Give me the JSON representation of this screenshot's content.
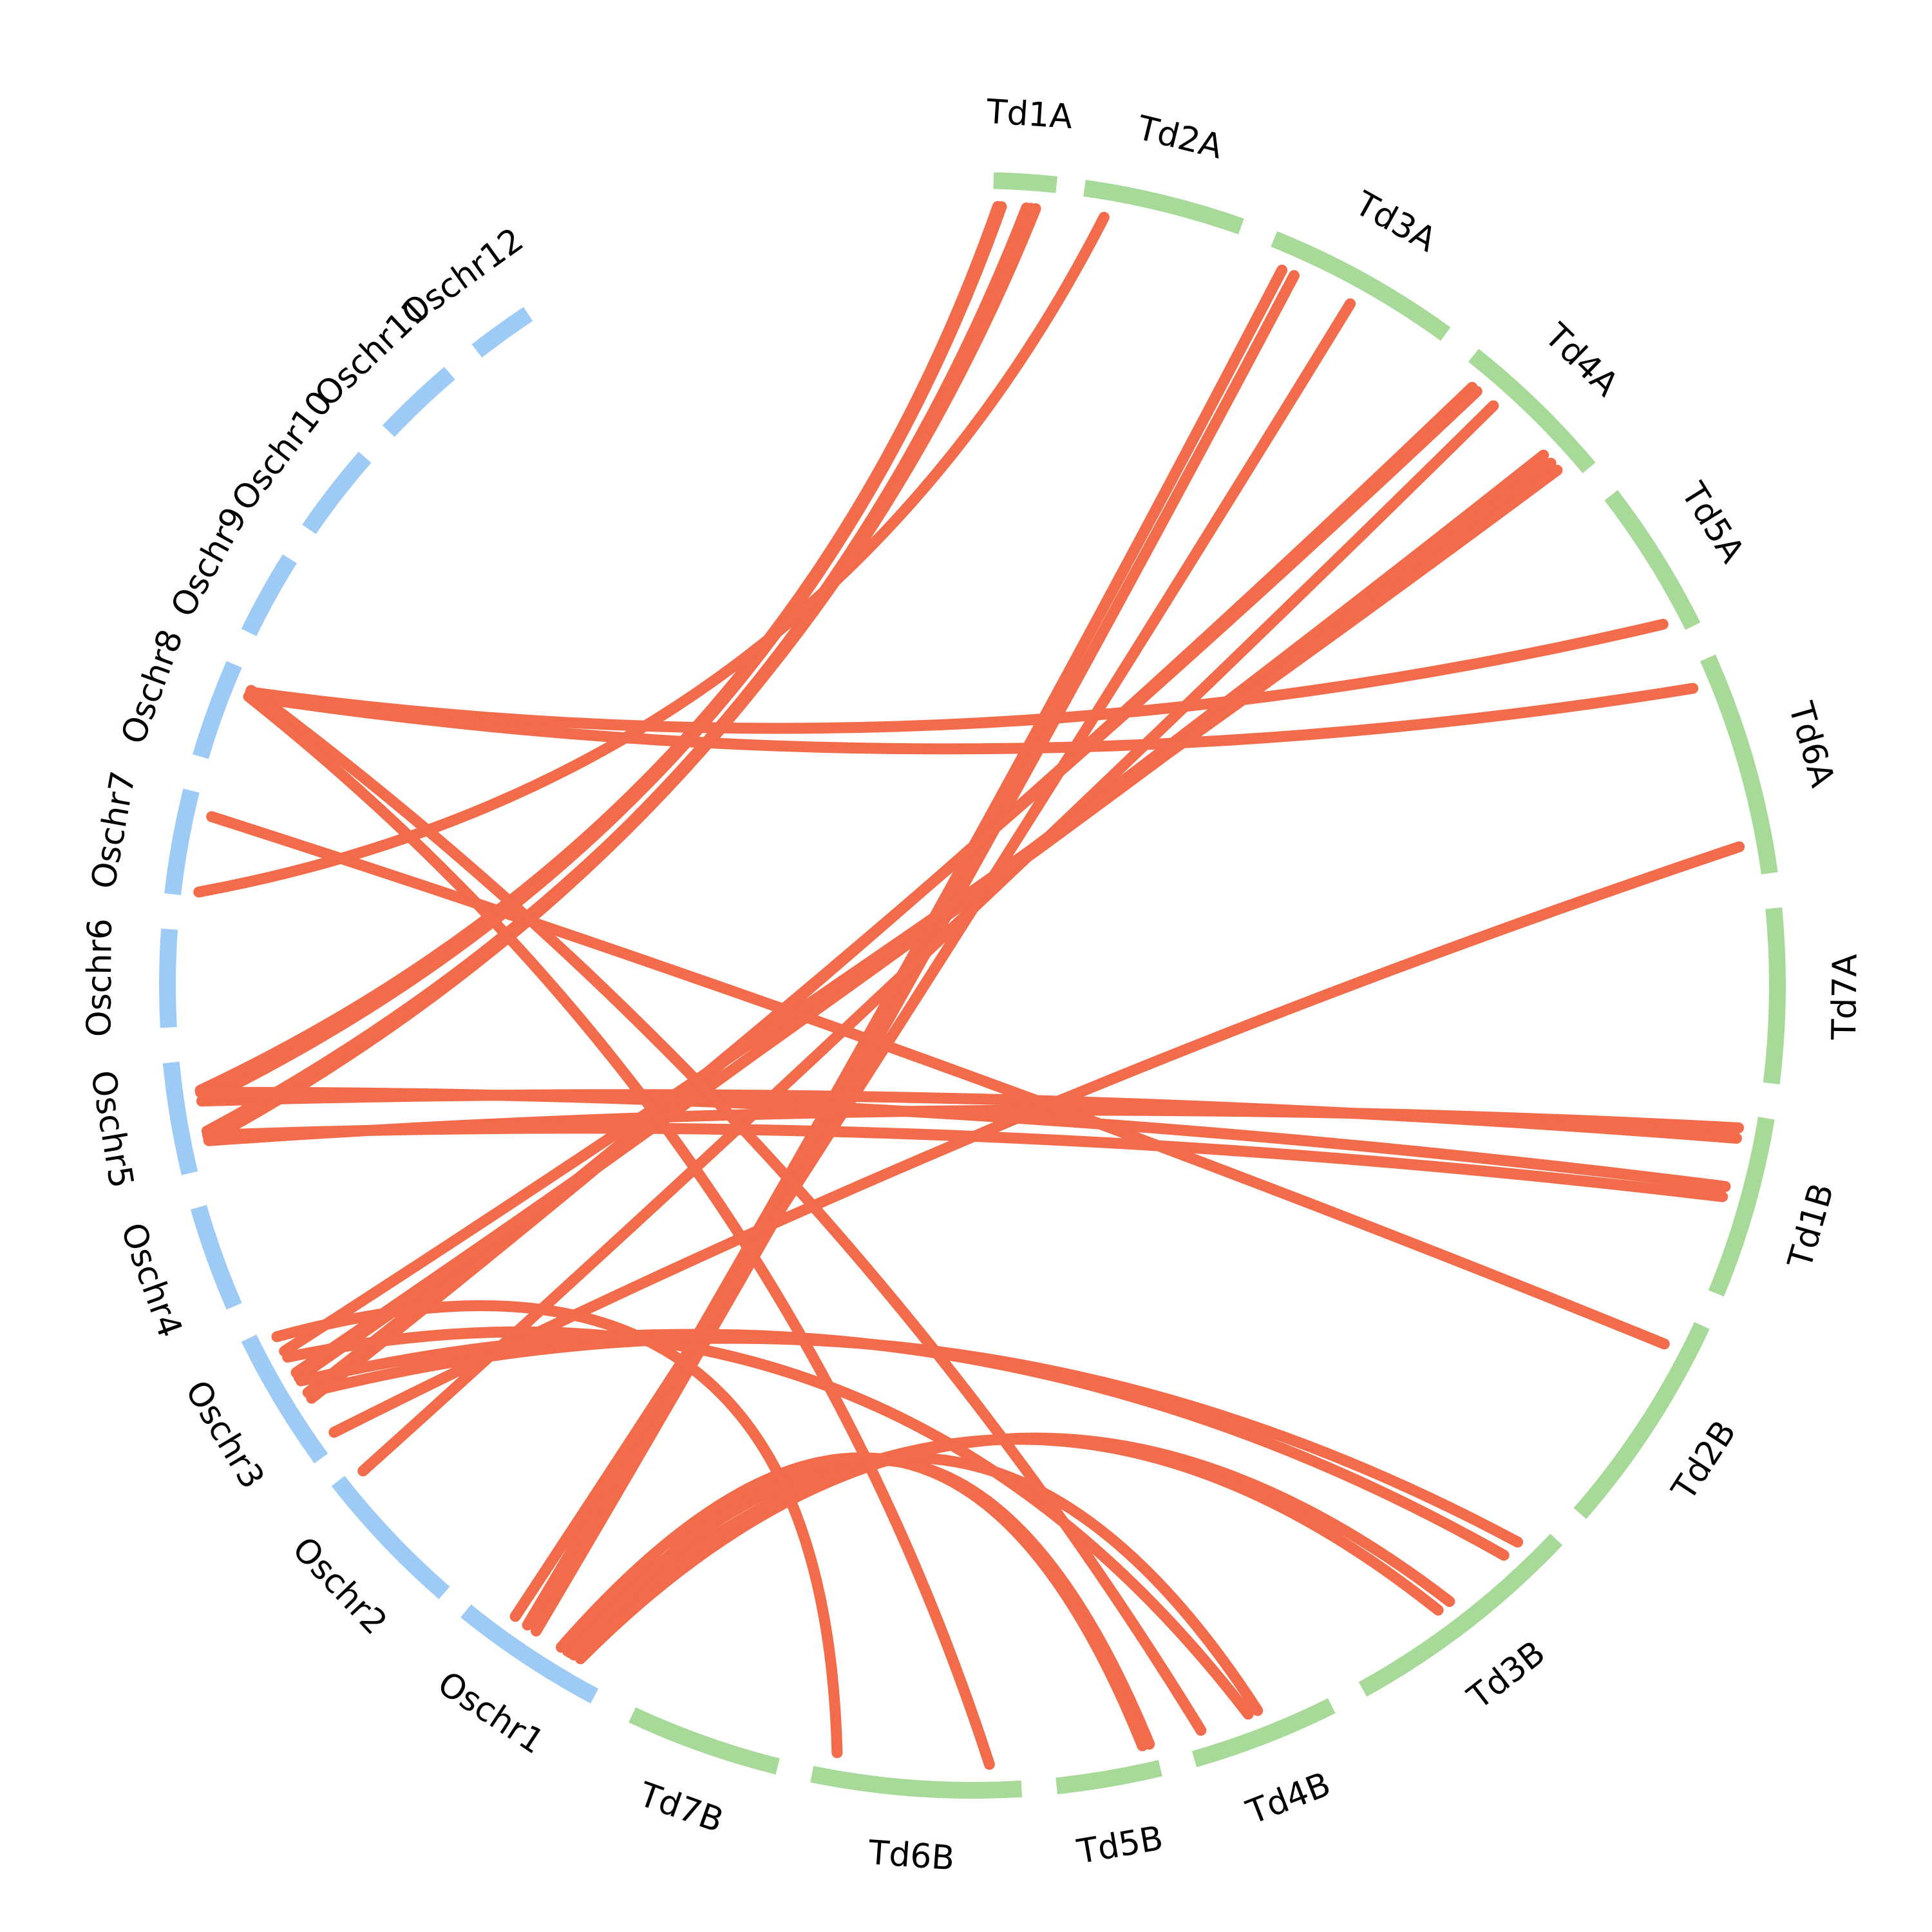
{
  "colors": {
    "rice": "#9ecbf6",
    "wheat": "#a7d999",
    "link": "#f26b4a",
    "label": "#000000"
  },
  "chromosomes": [
    {
      "id": "Td1A",
      "label": "Td1A",
      "group": "wheat"
    },
    {
      "id": "Td2A",
      "label": "Td2A",
      "group": "wheat"
    },
    {
      "id": "Td3A",
      "label": "Td3A",
      "group": "wheat"
    },
    {
      "id": "Td4A",
      "label": "Td4A",
      "group": "wheat"
    },
    {
      "id": "Td5A",
      "label": "Td5A",
      "group": "wheat"
    },
    {
      "id": "Td6A",
      "label": "Td6A",
      "group": "wheat"
    },
    {
      "id": "Td7A",
      "label": "Td7A",
      "group": "wheat"
    },
    {
      "id": "Td1B",
      "label": "Td1B",
      "group": "wheat"
    },
    {
      "id": "Td2B",
      "label": "Td2B",
      "group": "wheat"
    },
    {
      "id": "Td3B",
      "label": "Td3B",
      "group": "wheat"
    },
    {
      "id": "Td4B",
      "label": "Td4B",
      "group": "wheat"
    },
    {
      "id": "Td5B",
      "label": "Td5B",
      "group": "wheat"
    },
    {
      "id": "Td6B",
      "label": "Td6B",
      "group": "wheat"
    },
    {
      "id": "Td7B",
      "label": "Td7B",
      "group": "wheat"
    },
    {
      "id": "Oschr1",
      "label": "Oschr1",
      "group": "rice"
    },
    {
      "id": "Oschr2",
      "label": "Oschr2",
      "group": "rice"
    },
    {
      "id": "Oschr3",
      "label": "Oschr3",
      "group": "rice"
    },
    {
      "id": "Oschr4",
      "label": "Oschr4",
      "group": "rice"
    },
    {
      "id": "Oschr5",
      "label": "Oschr5",
      "group": "rice"
    },
    {
      "id": "Oschr6",
      "label": "Oschr6",
      "group": "rice"
    },
    {
      "id": "Oschr7",
      "label": "Oschr7",
      "group": "rice"
    },
    {
      "id": "Oschr8",
      "label": "Oschr8",
      "group": "rice"
    },
    {
      "id": "Oschr9",
      "label": "Oschr9",
      "group": "rice"
    },
    {
      "id": "Oschr10",
      "label": "Oschr10",
      "group": "rice"
    },
    {
      "id": "Oschr11",
      "label": "Oschr11",
      "group": "rice"
    },
    {
      "id": "Oschr12",
      "label": "Oschr12",
      "group": "rice"
    }
  ],
  "links": [
    {
      "source": "Td1A",
      "source_frac": 0.08,
      "target": "Oschr5",
      "target_frac": 0.72
    },
    {
      "source": "Td1A",
      "source_frac": 0.14,
      "target": "Oschr5",
      "target_frac": 0.62
    },
    {
      "source": "Td1A",
      "source_frac": 0.55,
      "target": "Oschr5",
      "target_frac": 0.3
    },
    {
      "source": "Td1A",
      "source_frac": 0.62,
      "target": "Oschr5",
      "target_frac": 0.26
    },
    {
      "source": "Td1A",
      "source_frac": 0.7,
      "target": "Oschr5",
      "target_frac": 0.34
    },
    {
      "source": "Td2A",
      "source_frac": 0.15,
      "target": "Oschr7",
      "target_frac": 0.05
    },
    {
      "source": "Td3A",
      "source_frac": 0.1,
      "target": "Oschr1",
      "target_frac": 0.62
    },
    {
      "source": "Td3A",
      "source_frac": 0.17,
      "target": "Oschr1",
      "target_frac": 0.55
    },
    {
      "source": "Td3A",
      "source_frac": 0.5,
      "target": "Oschr1",
      "target_frac": 0.72
    },
    {
      "source": "Td4A",
      "source_frac": 0.12,
      "target": "Oschr3",
      "target_frac": 0.4
    },
    {
      "source": "Td4A",
      "source_frac": 0.16,
      "target": "Oschr3",
      "target_frac": 0.45
    },
    {
      "source": "Td4A",
      "source_frac": 0.3,
      "target": "Oschr2",
      "target_frac": 0.95
    },
    {
      "source": "Td4A",
      "source_frac": 0.75,
      "target": "Oschr3",
      "target_frac": 0.58
    },
    {
      "source": "Td4A",
      "source_frac": 0.82,
      "target": "Oschr3",
      "target_frac": 0.62
    },
    {
      "source": "Td4A",
      "source_frac": 0.88,
      "target": "Oschr3",
      "target_frac": 0.8
    },
    {
      "source": "Td5A",
      "source_frac": 0.9,
      "target": "Oschr8",
      "target_frac": 0.8
    },
    {
      "source": "Td6A",
      "source_frac": 0.1,
      "target": "Oschr8",
      "target_frac": 0.75
    },
    {
      "source": "Td6A",
      "source_frac": 0.86,
      "target": "Oschr3",
      "target_frac": 0.1
    },
    {
      "source": "Td1B",
      "source_frac": 0.08,
      "target": "Oschr5",
      "target_frac": 0.25
    },
    {
      "source": "Td1B",
      "source_frac": 0.14,
      "target": "Oschr5",
      "target_frac": 0.62
    },
    {
      "source": "Td1B",
      "source_frac": 0.42,
      "target": "Oschr5",
      "target_frac": 0.7
    },
    {
      "source": "Td1B",
      "source_frac": 0.48,
      "target": "Oschr5",
      "target_frac": 0.3
    },
    {
      "source": "Td2B",
      "source_frac": 0.15,
      "target": "Oschr7",
      "target_frac": 0.8
    },
    {
      "source": "Td3B",
      "source_frac": 0.12,
      "target": "Oschr3",
      "target_frac": 0.45
    },
    {
      "source": "Td3B",
      "source_frac": 0.2,
      "target": "Oschr3",
      "target_frac": 0.55
    },
    {
      "source": "Td3B",
      "source_frac": 0.5,
      "target": "Oschr1",
      "target_frac": 0.2
    },
    {
      "source": "Td3B",
      "source_frac": 0.56,
      "target": "Oschr1",
      "target_frac": 0.28
    },
    {
      "source": "Td4B",
      "source_frac": 0.48,
      "target": "Oschr1",
      "target_frac": 0.3
    },
    {
      "source": "Td4B",
      "source_frac": 0.55,
      "target": "Oschr3",
      "target_frac": 0.75
    },
    {
      "source": "Td4B",
      "source_frac": 0.9,
      "target": "Oschr8",
      "target_frac": 0.82
    },
    {
      "source": "Td5B",
      "source_frac": 0.05,
      "target": "Oschr1",
      "target_frac": 0.25
    },
    {
      "source": "Td5B",
      "source_frac": 0.12,
      "target": "Oschr1",
      "target_frac": 0.35
    },
    {
      "source": "Td6B",
      "source_frac": 0.15,
      "target": "Oschr8",
      "target_frac": 0.75
    },
    {
      "source": "Td6B",
      "source_frac": 0.9,
      "target": "Oschr3",
      "target_frac": 0.92
    }
  ]
}
